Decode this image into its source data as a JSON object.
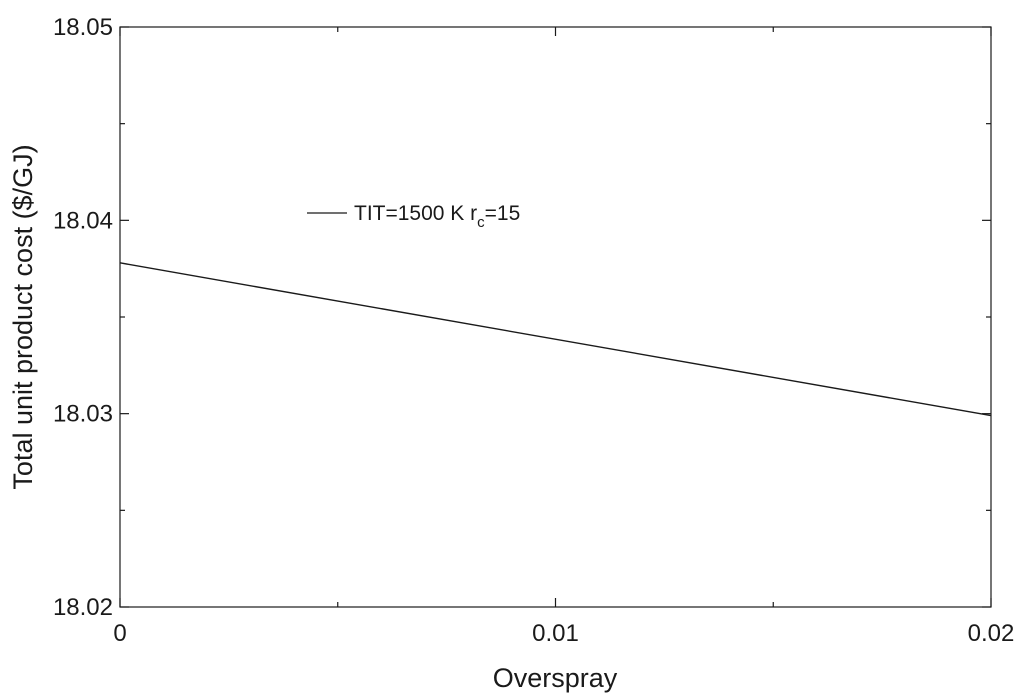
{
  "chart_data": {
    "type": "line",
    "title": "",
    "xlabel": "Overspray",
    "ylabel": "Total unit product cost ($/GJ)",
    "xlim": [
      0,
      0.02
    ],
    "ylim": [
      18.02,
      18.05
    ],
    "x_ticks": [
      0,
      0.01,
      0.02
    ],
    "x_tick_labels": [
      "0",
      "0.01",
      "0.02"
    ],
    "x_minor_ticks": [
      0.005,
      0.015
    ],
    "y_ticks": [
      18.02,
      18.03,
      18.04,
      18.05
    ],
    "y_tick_labels": [
      "18.02",
      "18.03",
      "18.04",
      "18.05"
    ],
    "y_minor_ticks": [
      18.025,
      18.035,
      18.045
    ],
    "grid": false,
    "legend_position": "upper-left",
    "series": [
      {
        "legend_main": "TIT=1500 K r",
        "legend_sub": "c",
        "legend_tail": "=15",
        "color": "#1a1a1a",
        "x": [
          0,
          0.02
        ],
        "y": [
          18.0378,
          18.0299
        ]
      }
    ]
  }
}
